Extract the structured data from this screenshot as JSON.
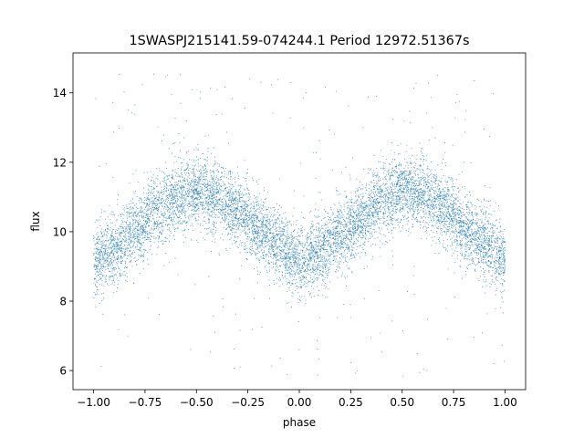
{
  "chart_data": {
    "type": "scatter",
    "title": "1SWASPJ215141.59-074244.1 Period 12972.51367s",
    "xlabel": "phase",
    "ylabel": "flux",
    "xlim": [
      -1.1,
      1.1
    ],
    "ylim": [
      5.45,
      15.15
    ],
    "xticks": [
      -1.0,
      -0.75,
      -0.5,
      -0.25,
      0.0,
      0.25,
      0.5,
      0.75,
      1.0
    ],
    "xtick_labels": [
      "−1.00",
      "−0.75",
      "−0.50",
      "−0.25",
      "0.00",
      "0.25",
      "0.50",
      "0.75",
      "1.00"
    ],
    "yticks": [
      6,
      8,
      10,
      12,
      14
    ],
    "ytick_labels": [
      "6",
      "8",
      "10",
      "12",
      "14"
    ],
    "grid": false,
    "legend": "none",
    "color": "#1f77b4",
    "series": [
      {
        "x_range": [
          -1.0,
          1.0
        ],
        "x": [
          -1.0,
          -0.9,
          -0.8,
          -0.7,
          -0.6,
          -0.5,
          -0.4,
          -0.3,
          -0.2,
          -0.1,
          0.0,
          0.1,
          0.2,
          0.3,
          0.4,
          0.5,
          0.6,
          0.7,
          0.8,
          0.9,
          1.0
        ],
        "y_center": [
          9.1,
          9.5,
          10.0,
          10.6,
          11.0,
          11.2,
          11.0,
          10.6,
          10.1,
          9.6,
          9.1,
          9.4,
          9.9,
          10.4,
          10.9,
          11.2,
          11.1,
          10.7,
          10.2,
          9.7,
          9.2
        ],
        "spread": 0.5,
        "n_points": 9000,
        "outlier_range": [
          5.8,
          14.7
        ]
      }
    ]
  }
}
